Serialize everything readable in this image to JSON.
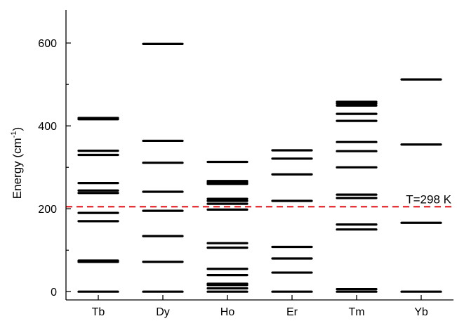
{
  "chart_data": {
    "type": "scatter",
    "title": "",
    "xlabel": "",
    "ylabel": "Energy (cm-1)",
    "ylabel_parts": {
      "main": "Energy (cm",
      "sup": "-1",
      "close": ")"
    },
    "categories": [
      "Tb",
      "Dy",
      "Ho",
      "Er",
      "Tm",
      "Yb"
    ],
    "ylim": [
      -20,
      680
    ],
    "yticks": [
      0,
      200,
      400,
      600
    ],
    "grid": false,
    "levels": {
      "Tb": [
        0,
        72,
        75,
        170,
        190,
        238,
        244,
        262,
        330,
        340,
        416,
        419
      ],
      "Dy": [
        0,
        72,
        134,
        195,
        241,
        311,
        364,
        598
      ],
      "Ho": [
        0,
        8,
        16,
        19,
        40,
        55,
        106,
        117,
        198,
        212,
        219,
        224,
        260,
        264,
        267,
        313
      ],
      "Er": [
        0,
        46,
        80,
        108,
        219,
        283,
        321,
        341
      ],
      "Tm": [
        0,
        6,
        150,
        162,
        226,
        234,
        300,
        339,
        361,
        412,
        429,
        449,
        454,
        458
      ],
      "Yb": [
        0,
        166,
        355,
        512
      ]
    },
    "reference_line": {
      "value": 205,
      "label": "T=298 K",
      "color": "#e8262b",
      "style": "dashed"
    }
  }
}
